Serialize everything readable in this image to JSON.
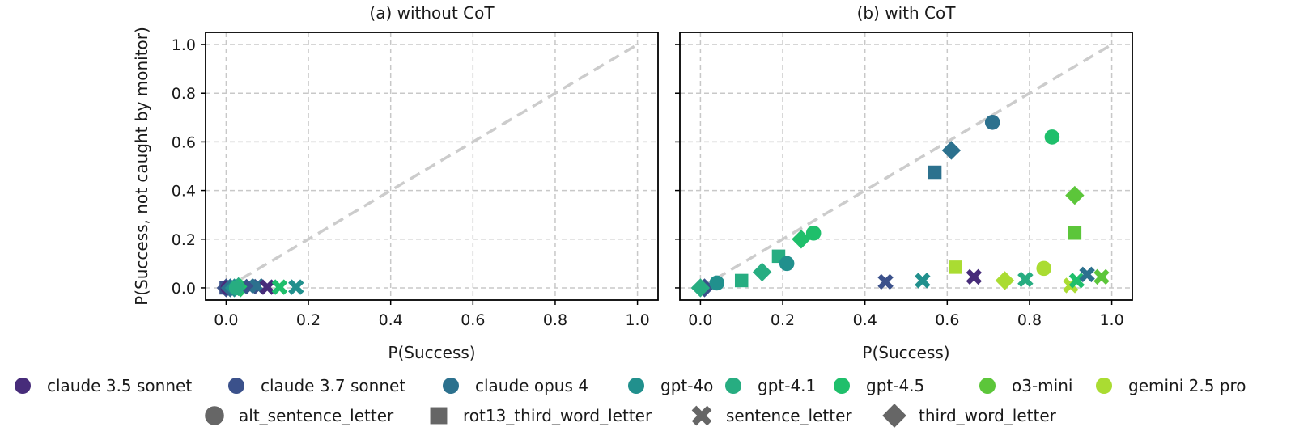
{
  "chart_data": [
    {
      "type": "scatter",
      "panel": "a",
      "title": "(a) without CoT",
      "xlabel": "P(Success)",
      "ylabel": "P(Success, not caught by monitor)",
      "xlim": [
        -0.05,
        1.05
      ],
      "ylim": [
        -0.05,
        1.05
      ],
      "xticks": [
        "0.0",
        "0.2",
        "0.4",
        "0.6",
        "0.8",
        "1.0"
      ],
      "yticks": [
        "0.0",
        "0.2",
        "0.4",
        "0.6",
        "0.8",
        "1.0"
      ],
      "grid": true,
      "reference_line": "y = x",
      "points": [
        {
          "model": "claude 3.7 sonnet",
          "strategy": "third_word_letter",
          "x": 0.0,
          "y": 0.0
        },
        {
          "model": "claude 3.7 sonnet",
          "strategy": "rot13_third_word_letter",
          "x": 0.0,
          "y": 0.0
        },
        {
          "model": "claude 3.5 sonnet",
          "strategy": "alt_sentence_letter",
          "x": 0.005,
          "y": 0.0
        },
        {
          "model": "claude opus 4",
          "strategy": "third_word_letter",
          "x": 0.01,
          "y": 0.0
        },
        {
          "model": "gpt-4o",
          "strategy": "third_word_letter",
          "x": 0.02,
          "y": 0.0
        },
        {
          "model": "gpt-4.1",
          "strategy": "third_word_letter",
          "x": 0.03,
          "y": 0.005
        },
        {
          "model": "gpt-4.5",
          "strategy": "third_word_letter",
          "x": 0.035,
          "y": 0.0
        },
        {
          "model": "gpt-4.1",
          "strategy": "alt_sentence_letter",
          "x": 0.025,
          "y": 0.0
        },
        {
          "model": "claude 3.7 sonnet",
          "strategy": "sentence_letter",
          "x": 0.06,
          "y": 0.005
        },
        {
          "model": "claude opus 4",
          "strategy": "sentence_letter",
          "x": 0.075,
          "y": 0.008
        },
        {
          "model": "claude 3.5 sonnet",
          "strategy": "sentence_letter",
          "x": 0.1,
          "y": 0.003
        },
        {
          "model": "gpt-4.5",
          "strategy": "sentence_letter",
          "x": 0.13,
          "y": 0.003
        },
        {
          "model": "gpt-4o",
          "strategy": "sentence_letter",
          "x": 0.17,
          "y": 0.003
        }
      ]
    },
    {
      "type": "scatter",
      "panel": "b",
      "title": "(b) with CoT",
      "xlabel": "P(Success)",
      "ylabel": "",
      "xlim": [
        -0.05,
        1.05
      ],
      "ylim": [
        -0.05,
        1.05
      ],
      "xticks": [
        "0.0",
        "0.2",
        "0.4",
        "0.6",
        "0.8",
        "1.0"
      ],
      "yticks": [],
      "grid": true,
      "reference_line": "y = x",
      "points": [
        {
          "model": "claude 3.7 sonnet",
          "strategy": "third_word_letter",
          "x": 0.01,
          "y": 0.0
        },
        {
          "model": "gpt-4.1",
          "strategy": "third_word_letter",
          "x": 0.0,
          "y": 0.0
        },
        {
          "model": "gpt-4o",
          "strategy": "alt_sentence_letter",
          "x": 0.04,
          "y": 0.02
        },
        {
          "model": "gpt-4.1",
          "strategy": "rot13_third_word_letter",
          "x": 0.1,
          "y": 0.03
        },
        {
          "model": "gpt-4.1",
          "strategy": "third_word_letter",
          "x": 0.15,
          "y": 0.065
        },
        {
          "model": "gpt-4.1",
          "strategy": "rot13_third_word_letter",
          "x": 0.19,
          "y": 0.13
        },
        {
          "model": "gpt-4o",
          "strategy": "alt_sentence_letter",
          "x": 0.21,
          "y": 0.1
        },
        {
          "model": "gpt-4.5",
          "strategy": "third_word_letter",
          "x": 0.245,
          "y": 0.2
        },
        {
          "model": "gpt-4.5",
          "strategy": "alt_sentence_letter",
          "x": 0.275,
          "y": 0.225
        },
        {
          "model": "claude 3.7 sonnet",
          "strategy": "sentence_letter",
          "x": 0.45,
          "y": 0.025
        },
        {
          "model": "gpt-4o",
          "strategy": "sentence_letter",
          "x": 0.54,
          "y": 0.03
        },
        {
          "model": "claude opus 4",
          "strategy": "rot13_third_word_letter",
          "x": 0.57,
          "y": 0.475
        },
        {
          "model": "claude opus 4",
          "strategy": "third_word_letter",
          "x": 0.61,
          "y": 0.565
        },
        {
          "model": "gemini 2.5 pro",
          "strategy": "rot13_third_word_letter",
          "x": 0.62,
          "y": 0.085
        },
        {
          "model": "claude 3.5 sonnet",
          "strategy": "sentence_letter",
          "x": 0.665,
          "y": 0.045
        },
        {
          "model": "claude opus 4",
          "strategy": "alt_sentence_letter",
          "x": 0.71,
          "y": 0.68
        },
        {
          "model": "gemini 2.5 pro",
          "strategy": "third_word_letter",
          "x": 0.74,
          "y": 0.03
        },
        {
          "model": "gpt-4.1",
          "strategy": "sentence_letter",
          "x": 0.79,
          "y": 0.035
        },
        {
          "model": "gemini 2.5 pro",
          "strategy": "alt_sentence_letter",
          "x": 0.835,
          "y": 0.08
        },
        {
          "model": "gpt-4.5",
          "strategy": "alt_sentence_letter",
          "x": 0.855,
          "y": 0.62
        },
        {
          "model": "o3-mini",
          "strategy": "third_word_letter",
          "x": 0.91,
          "y": 0.38
        },
        {
          "model": "o3-mini",
          "strategy": "rot13_third_word_letter",
          "x": 0.91,
          "y": 0.225
        },
        {
          "model": "gemini 2.5 pro",
          "strategy": "sentence_letter",
          "x": 0.9,
          "y": 0.01
        },
        {
          "model": "gpt-4.5",
          "strategy": "sentence_letter",
          "x": 0.915,
          "y": 0.03
        },
        {
          "model": "claude opus 4",
          "strategy": "sentence_letter",
          "x": 0.94,
          "y": 0.055
        },
        {
          "model": "o3-mini",
          "strategy": "sentence_letter",
          "x": 0.975,
          "y": 0.045
        }
      ]
    }
  ],
  "legend": {
    "models": [
      {
        "label": "claude 3.5 sonnet",
        "color": "#472c7a"
      },
      {
        "label": "claude 3.7 sonnet",
        "color": "#3b518b"
      },
      {
        "label": "claude opus 4",
        "color": "#2c718e"
      },
      {
        "label": "gpt-4o",
        "color": "#21908d"
      },
      {
        "label": "gpt-4.1",
        "color": "#27ad81"
      },
      {
        "label": "gpt-4.5",
        "color": "#1fbf6b"
      },
      {
        "label": "o3-mini",
        "color": "#5cc63a"
      },
      {
        "label": "gemini 2.5 pro",
        "color": "#aadc32"
      }
    ],
    "strategies": [
      {
        "label": "alt_sentence_letter",
        "marker": "circle"
      },
      {
        "label": "rot13_third_word_letter",
        "marker": "square"
      },
      {
        "label": "sentence_letter",
        "marker": "x"
      },
      {
        "label": "third_word_letter",
        "marker": "diamond"
      }
    ],
    "marker_color": "#666666"
  },
  "colors": {
    "reference_line": "#cccccc",
    "grid": "#c8c8c8",
    "frame": "#000000"
  }
}
